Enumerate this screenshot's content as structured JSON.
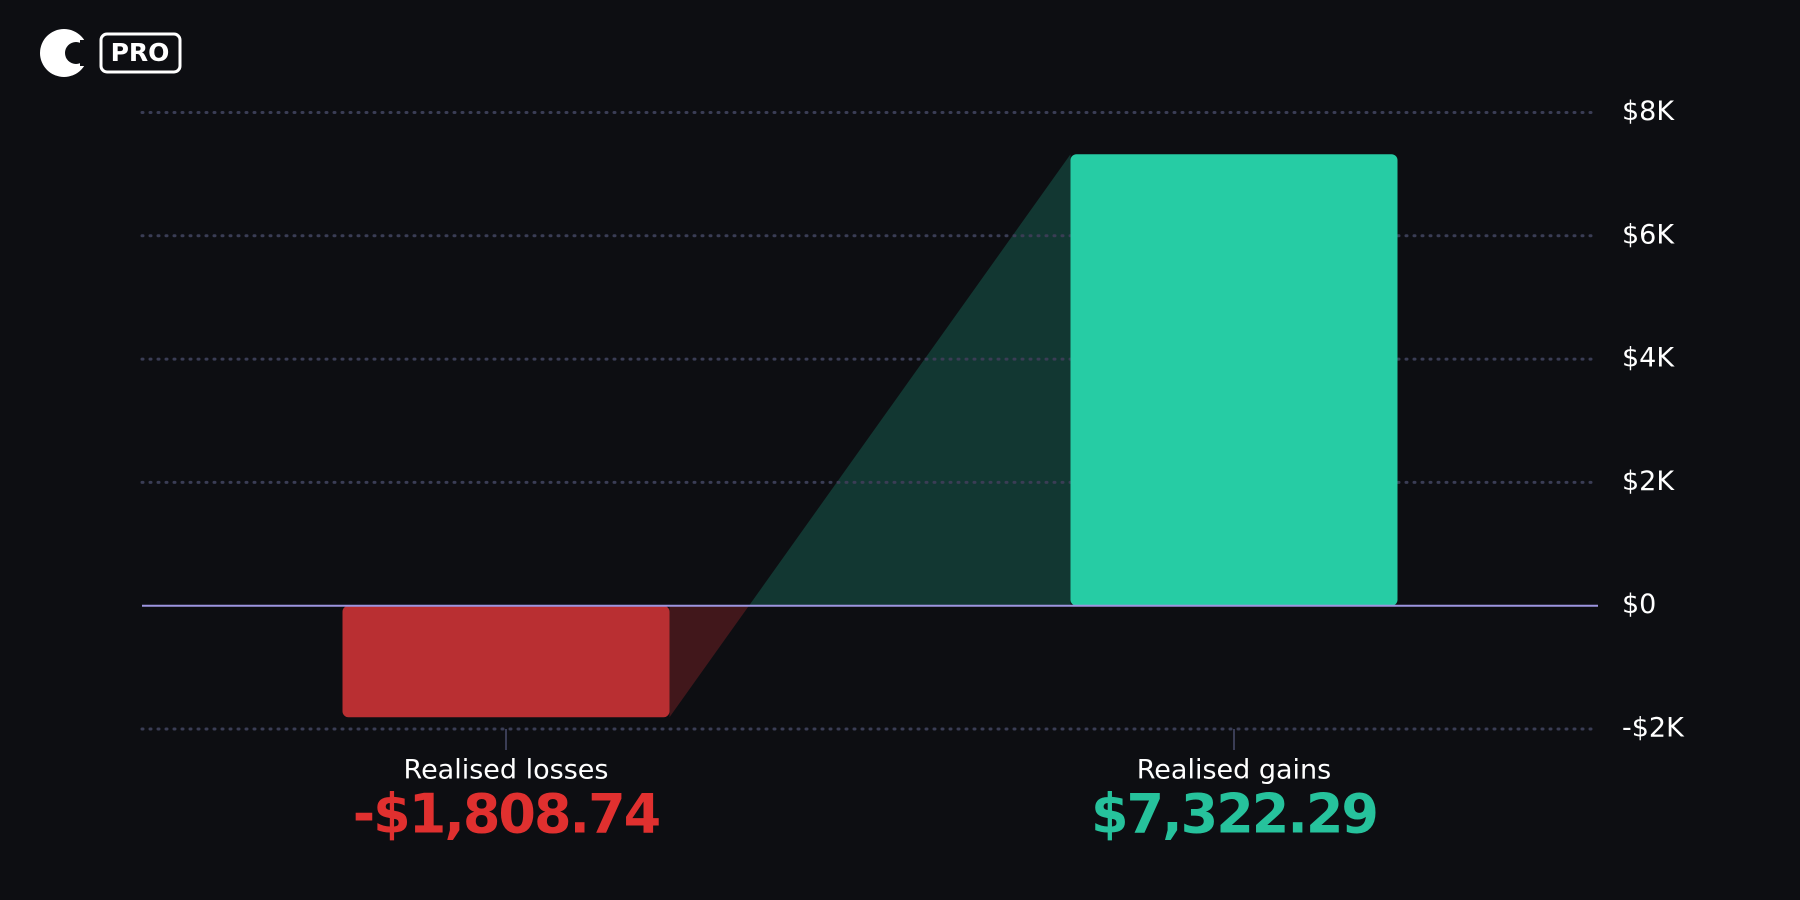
{
  "brand": {
    "badge": "PRO"
  },
  "chart_data": {
    "type": "bar",
    "categories": [
      "Realised losses",
      "Realised gains"
    ],
    "values": [
      -1808.74,
      7322.29
    ],
    "value_labels": [
      "-$1,808.74",
      "$7,322.29"
    ],
    "colors": [
      "#b92f32",
      "#26cca4"
    ],
    "label_colors": [
      "#e0302f",
      "#26c29c"
    ],
    "ylim": [
      -2000,
      8000
    ],
    "yticks": [
      {
        "value": -2000,
        "label": "-$2K"
      },
      {
        "value": 0,
        "label": "$0"
      },
      {
        "value": 2000,
        "label": "$2K"
      },
      {
        "value": 4000,
        "label": "$4K"
      },
      {
        "value": 6000,
        "label": "$6K"
      },
      {
        "value": 8000,
        "label": "$8K"
      }
    ],
    "grid": true
  }
}
